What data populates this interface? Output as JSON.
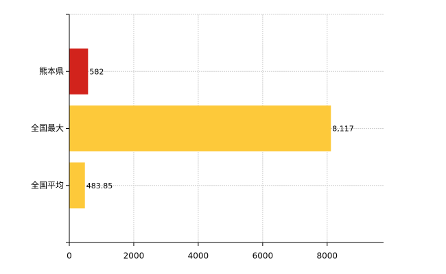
{
  "chart_data": {
    "type": "bar",
    "orientation": "horizontal",
    "categories": [
      "熊本県",
      "全国最大",
      "全国平均"
    ],
    "values": [
      582,
      8117,
      483.85
    ],
    "value_labels": [
      "582",
      "8,117",
      "483.85"
    ],
    "colors": [
      "#d2231c",
      "#fdc93a",
      "#fdc93a"
    ],
    "xlim": [
      0,
      9750
    ],
    "xticks": [
      0,
      2000,
      4000,
      6000,
      8000
    ],
    "grid": true
  }
}
